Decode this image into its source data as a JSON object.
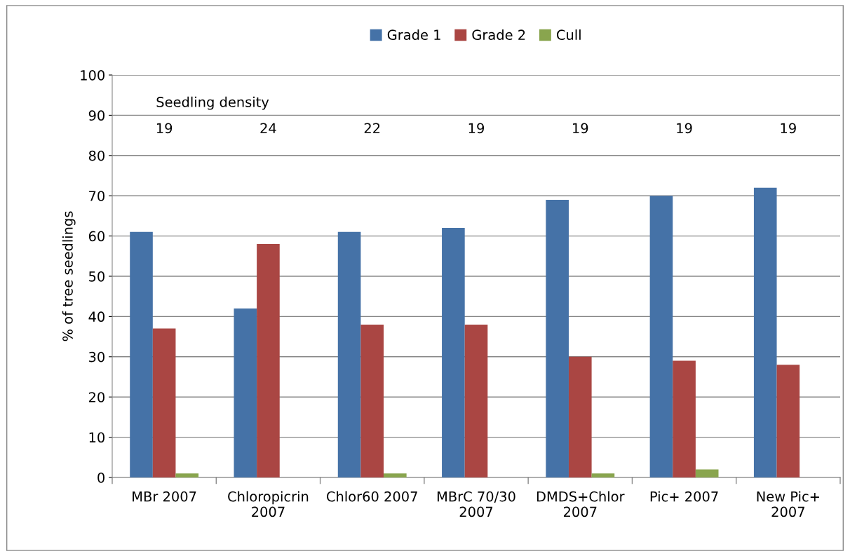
{
  "chart_data": {
    "type": "bar",
    "ylabel": "% of tree seedlings",
    "categories": [
      "MBr 2007",
      "Chloropicrin\n2007",
      "Chlor60 2007",
      "MBrC 70/30\n2007",
      "DMDS+Chlor\n2007",
      "Pic+ 2007",
      "New Pic+\n2007"
    ],
    "series": [
      {
        "name": "Grade 1",
        "color": "#4572a7",
        "values": [
          61,
          42,
          61,
          62,
          69,
          70,
          72
        ]
      },
      {
        "name": "Grade 2",
        "color": "#aa4643",
        "values": [
          37,
          58,
          38,
          38,
          30,
          29,
          28
        ]
      },
      {
        "name": "Cull",
        "color": "#89a54e",
        "values": [
          1,
          0,
          1,
          0,
          1,
          2,
          0
        ]
      }
    ],
    "ylim": [
      0,
      100
    ],
    "yticks": [
      0,
      10,
      20,
      30,
      40,
      50,
      60,
      70,
      80,
      90,
      100
    ],
    "grid": "y",
    "legend": "top",
    "annotations": [
      "Seedling density",
      "19",
      "24",
      "22",
      "19",
      "19",
      "19",
      "19"
    ]
  }
}
